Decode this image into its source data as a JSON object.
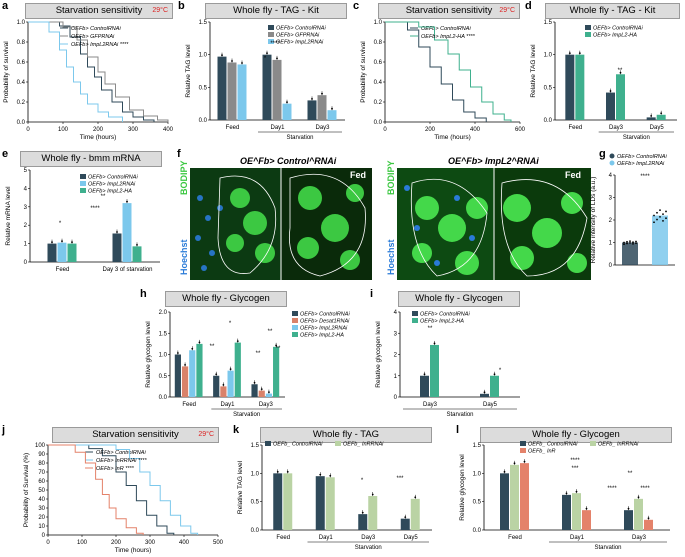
{
  "colors": {
    "control": "#2f4a5a",
    "gfp": "#8a8a8a",
    "impl2": "#7cc8ec",
    "ha": "#3fb08e",
    "desat": "#d9826a",
    "inr_rnai": "#bad3a4",
    "inr": "#e4826a",
    "title_bg": "#dcdcdc",
    "temp": "#dd2222"
  },
  "panels": {
    "a": {
      "label": "a",
      "title": "Starvation sensitivity",
      "temp": "29°C",
      "ylabel": "Probability of survival",
      "xlabel": "Time (hours)",
      "chart_data": {
        "type": "line",
        "xlim": [
          0,
          400
        ],
        "ylim": [
          0,
          1
        ],
        "xticks": [
          "0",
          "100",
          "200",
          "300",
          "400"
        ],
        "yticks": [
          "0.0",
          "0.2",
          "0.4",
          "0.6",
          "0.8",
          "1.0"
        ],
        "series": [
          {
            "name": "OE^Fb> Control^RNAi",
            "points": [
              [
                0,
                1
              ],
              [
                90,
                0.96
              ],
              [
                120,
                0.85
              ],
              [
                150,
                0.68
              ],
              [
                170,
                0.55
              ],
              [
                190,
                0.45
              ],
              [
                210,
                0.32
              ],
              [
                240,
                0.2
              ],
              [
                270,
                0.1
              ],
              [
                300,
                0.05
              ],
              [
                330,
                0.02
              ],
              [
                360,
                0
              ]
            ]
          },
          {
            "name": "OE^Fb> GFP^RNAi",
            "points": [
              [
                0,
                1
              ],
              [
                100,
                0.95
              ],
              [
                140,
                0.82
              ],
              [
                170,
                0.65
              ],
              [
                200,
                0.5
              ],
              [
                220,
                0.38
              ],
              [
                250,
                0.25
              ],
              [
                290,
                0.12
              ],
              [
                330,
                0.06
              ],
              [
                370,
                0.02
              ],
              [
                400,
                0
              ]
            ]
          },
          {
            "name": "OE^Fb> ImpL2^RNAi ****",
            "points": [
              [
                0,
                1
              ],
              [
                60,
                0.9
              ],
              [
                90,
                0.72
              ],
              [
                110,
                0.55
              ],
              [
                130,
                0.4
              ],
              [
                150,
                0.28
              ],
              [
                170,
                0.18
              ],
              [
                200,
                0.1
              ],
              [
                230,
                0.05
              ],
              [
                270,
                0
              ]
            ]
          }
        ]
      }
    },
    "b": {
      "label": "b",
      "title": "Whole fly - TAG - Kit",
      "ylabel": "Relative TAG level",
      "group_caption": "Starvation",
      "chart_data": {
        "type": "bar",
        "categories": [
          "Feed",
          "Day1",
          "Day3"
        ],
        "ylim": [
          0,
          1.5
        ],
        "yticks": [
          "0.0",
          "0.5",
          "1.0",
          "1.5"
        ],
        "series": [
          {
            "name": "OE^Fb> Control^RNAi",
            "values": [
              0.97,
              1.0,
              0.3
            ]
          },
          {
            "name": "OE^Fb> GFP^RNAi",
            "values": [
              0.88,
              0.92,
              0.38
            ]
          },
          {
            "name": "OE^Fb> ImpL2^RNAi",
            "values": [
              0.85,
              0.25,
              0.15
            ]
          }
        ],
        "annotations": [
          "****",
          "*"
        ]
      }
    },
    "c": {
      "label": "c",
      "title": "Starvation sensitivity",
      "temp": "29°C",
      "ylabel": "Probability of survival",
      "xlabel": "Time (hours)",
      "chart_data": {
        "type": "line",
        "xlim": [
          0,
          600
        ],
        "ylim": [
          0,
          1
        ],
        "xticks": [
          "0",
          "200",
          "400",
          "600"
        ],
        "yticks": [
          "0.0",
          "0.2",
          "0.4",
          "0.6",
          "0.8",
          "1.0"
        ],
        "series": [
          {
            "name": "OE^Fb> Control^RNAi",
            "points": [
              [
                0,
                1
              ],
              [
                100,
                0.92
              ],
              [
                150,
                0.75
              ],
              [
                200,
                0.55
              ],
              [
                250,
                0.38
              ],
              [
                300,
                0.22
              ],
              [
                350,
                0.1
              ],
              [
                400,
                0.04
              ],
              [
                450,
                0
              ]
            ]
          },
          {
            "name": "OE^Fb> ImpL2-HA ****",
            "points": [
              [
                0,
                1
              ],
              [
                150,
                0.95
              ],
              [
                220,
                0.82
              ],
              [
                280,
                0.68
              ],
              [
                330,
                0.52
              ],
              [
                380,
                0.35
              ],
              [
                430,
                0.2
              ],
              [
                480,
                0.08
              ],
              [
                530,
                0.02
              ],
              [
                560,
                0
              ]
            ]
          }
        ]
      }
    },
    "d": {
      "label": "d",
      "title": "Whole fly - TAG - Kit",
      "ylabel": "Relative TAG level",
      "group_caption": "Starvation",
      "chart_data": {
        "type": "bar",
        "categories": [
          "Feed",
          "Day3",
          "Day5"
        ],
        "ylim": [
          0,
          1.5
        ],
        "yticks": [
          "0.0",
          "0.5",
          "1.0",
          "1.5"
        ],
        "series": [
          {
            "name": "OE^Fb> Control^RNAi",
            "values": [
              1.0,
              0.42,
              0.04
            ]
          },
          {
            "name": "OE^Fb> ImpL2-HA",
            "values": [
              1.0,
              0.7,
              0.08
            ]
          }
        ],
        "annotations": [
          "**"
        ]
      }
    },
    "e": {
      "label": "e",
      "title": "Whole fly - bmm mRNA",
      "ylabel": "Relative mRNA level",
      "xcats": [
        "Feed",
        "Day 3 of starvation"
      ],
      "chart_data": {
        "type": "bar",
        "categories": [
          "Feed",
          "Day 3 of starvation"
        ],
        "ylim": [
          0,
          5
        ],
        "yticks": [
          "0",
          "1",
          "2",
          "3",
          "4",
          "5"
        ],
        "series": [
          {
            "name": "OE^Fb> Control^RNAi",
            "values": [
              1.0,
              1.55
            ]
          },
          {
            "name": "OE^Fb> ImpL2^RNAi",
            "values": [
              1.05,
              3.2
            ]
          },
          {
            "name": "OE^Fb> ImpL2-HA",
            "values": [
              1.0,
              0.85
            ]
          }
        ],
        "annotations": [
          "*",
          "****",
          "**"
        ]
      }
    },
    "f": {
      "label": "f",
      "left_title": "OE^Fb> Control^RNAi",
      "right_title": "OE^Fb> ImpL2^RNAi",
      "condition": "Fed",
      "bodipy": "BODIPY",
      "hoechst": "Hoechst"
    },
    "g": {
      "label": "g",
      "ylabel": "Relative intensity of LDs (a.u.)",
      "chart_data": {
        "type": "scatter",
        "categories": [
          "OE^Fb> Control^RNAi",
          "OE^Fb> ImpL2^RNAi"
        ],
        "ylim": [
          0,
          4
        ],
        "yticks": [
          "0",
          "1",
          "2",
          "3",
          "4"
        ],
        "values": [
          1.0,
          2.2
        ],
        "annotations": [
          "****"
        ]
      }
    },
    "h": {
      "label": "h",
      "title": "Whole fly - Glycogen",
      "ylabel": "Relative glycogen level",
      "group_caption": "Starvation",
      "chart_data": {
        "type": "bar",
        "categories": [
          "Feed",
          "Day1",
          "Day3"
        ],
        "ylim": [
          0,
          2
        ],
        "yticks": [
          "0.0",
          "0.5",
          "1.0",
          "1.5",
          "2.0"
        ],
        "series": [
          {
            "name": "OE^Fb> Control^RNAi",
            "values": [
              1.0,
              0.5,
              0.3
            ]
          },
          {
            "name": "OE^Fb> Desat1^RNAi",
            "values": [
              0.72,
              0.25,
              0.15
            ]
          },
          {
            "name": "OE^Fb> ImpL2^RNAi",
            "values": [
              1.1,
              0.62,
              0.08
            ]
          },
          {
            "name": "OE^Fb> ImpL2-HA",
            "values": [
              1.25,
              1.28,
              1.18
            ]
          }
        ],
        "annotations": [
          "*",
          "**",
          "**",
          "**",
          "**"
        ]
      }
    },
    "i": {
      "label": "i",
      "title": "Whole fly - Glycogen",
      "ylabel": "Relative glycogen level",
      "group_caption": "Starvation",
      "chart_data": {
        "type": "bar",
        "categories": [
          "Day3",
          "Day5"
        ],
        "ylim": [
          0,
          4
        ],
        "yticks": [
          "0",
          "1",
          "2",
          "3",
          "4"
        ],
        "series": [
          {
            "name": "OE^Fb> Control^RNAi",
            "values": [
              1.0,
              0.15
            ]
          },
          {
            "name": "OE^Fb> ImpL2-HA",
            "values": [
              2.45,
              1.0
            ]
          }
        ],
        "annotations": [
          "**",
          "*"
        ]
      }
    },
    "j": {
      "label": "j",
      "title": "Starvation sensitivity",
      "temp": "29°C",
      "ylabel": "Probability of Survival (%)",
      "xlabel": "Time (hours)",
      "chart_data": {
        "type": "line",
        "xlim": [
          0,
          500
        ],
        "ylim": [
          0,
          100
        ],
        "xticks": [
          "0",
          "100",
          "200",
          "300",
          "400",
          "500"
        ],
        "yticks": [
          "0",
          "10",
          "20",
          "30",
          "40",
          "50",
          "60",
          "70",
          "80",
          "90",
          "100"
        ],
        "series": [
          {
            "name": "OE^Fb> Control^RNAi",
            "points": [
              [
                0,
                100
              ],
              [
                120,
                96
              ],
              [
                160,
                88
              ],
              [
                200,
                70
              ],
              [
                230,
                55
              ],
              [
                260,
                38
              ],
              [
                290,
                22
              ],
              [
                320,
                10
              ],
              [
                350,
                2
              ],
              [
                370,
                0
              ]
            ]
          },
          {
            "name": "OE^Fb> InR^RNAi ****",
            "points": [
              [
                0,
                100
              ],
              [
                200,
                95
              ],
              [
                240,
                85
              ],
              [
                270,
                70
              ],
              [
                300,
                55
              ],
              [
                330,
                38
              ],
              [
                360,
                22
              ],
              [
                390,
                10
              ],
              [
                420,
                2
              ],
              [
                440,
                0
              ]
            ]
          },
          {
            "name": "OE^Fb> InR ****",
            "points": [
              [
                0,
                100
              ],
              [
                80,
                92
              ],
              [
                110,
                80
              ],
              [
                140,
                62
              ],
              [
                160,
                45
              ],
              [
                180,
                30
              ],
              [
                200,
                18
              ],
              [
                230,
                8
              ],
              [
                260,
                2
              ],
              [
                280,
                0
              ]
            ]
          }
        ]
      }
    },
    "k": {
      "label": "k",
      "title": "Whole fly - TAG",
      "ylabel": "Relative TAG level",
      "group_caption": "Starvation",
      "chart_data": {
        "type": "bar",
        "categories": [
          "Feed",
          "Day1",
          "Day3",
          "Day5"
        ],
        "ylim": [
          0,
          1.5
        ],
        "yticks": [
          "0.0",
          "0.5",
          "1.0",
          "1.5"
        ],
        "series": [
          {
            "name": "OE^Fb_ Control^RNAi",
            "values": [
              1.0,
              0.95,
              0.28,
              0.2
            ]
          },
          {
            "name": "OE^Fb_ InR^RNAi",
            "values": [
              1.0,
              0.93,
              0.6,
              0.55
            ]
          }
        ],
        "annotations": [
          "*",
          "***"
        ]
      }
    },
    "l": {
      "label": "l",
      "title": "Whole fly - Glycogen",
      "ylabel": "Relative glycogen level",
      "group_caption": "Starvation",
      "chart_data": {
        "type": "bar",
        "categories": [
          "Feed",
          "Day1",
          "Day3"
        ],
        "ylim": [
          0,
          1.5
        ],
        "yticks": [
          "0.0",
          "0.5",
          "1.0",
          "1.5"
        ],
        "series": [
          {
            "name": "OE^Fb_ Control^RNAi",
            "values": [
              1.0,
              0.62,
              0.35
            ]
          },
          {
            "name": "OE^Fb_ InR^RNAi",
            "values": [
              1.15,
              0.65,
              0.55
            ]
          },
          {
            "name": "OE^Fb_ InR",
            "values": [
              1.18,
              0.35,
              0.18
            ]
          }
        ],
        "annotations": [
          "****",
          "***",
          "**",
          "****",
          "****"
        ]
      }
    }
  }
}
